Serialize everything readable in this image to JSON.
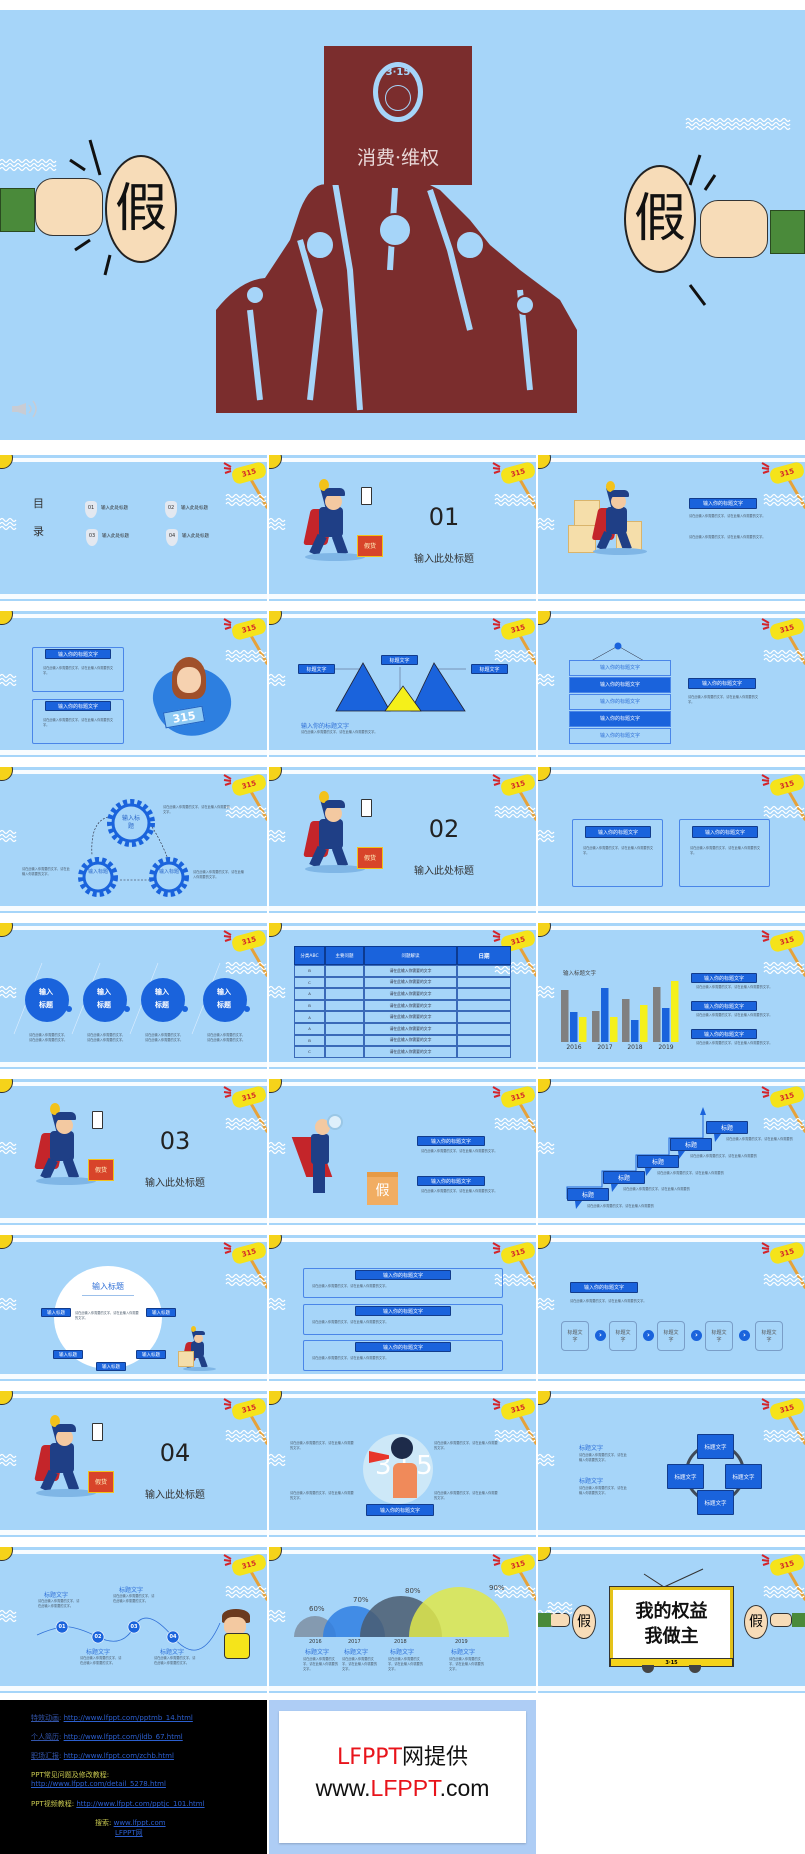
{
  "colors": {
    "slide_bg": "#a6d5f9",
    "accent_blue": "#1a63dc",
    "banner_red": "#7b2d2d",
    "yellow": "#f5e11a",
    "footer_black": "#000000",
    "brand_red": "#e8141b"
  },
  "main": {
    "logo": "3·15",
    "banner_text": "消费·维权",
    "fist_char": "假",
    "icons": [
      "fist-icon",
      "waves-icon",
      "speaker-icon"
    ]
  },
  "common": {
    "body": "请在此输入你需要的文字，请在此输入你需要的文字。",
    "hammer_label": "315",
    "title_placeholder": "输入此处标题",
    "heading": "输入你的标题文字",
    "short_title": "标题文字",
    "input_title": "输入标题",
    "fake_box": "假货",
    "fake": "假",
    "title": "标题"
  },
  "slides": [
    {
      "type": "toc",
      "chars": [
        "目",
        "录"
      ],
      "items": [
        {
          "num": "01",
          "label": "输入此处标题"
        },
        {
          "num": "02",
          "label": "输入此处标题"
        },
        {
          "num": "03",
          "label": "输入此处标题"
        },
        {
          "num": "04",
          "label": "输入此处标题"
        }
      ]
    },
    {
      "type": "section",
      "num": "01"
    },
    {
      "type": "police_text"
    },
    {
      "type": "girl_boxes",
      "sign": "315"
    },
    {
      "type": "triangles"
    },
    {
      "type": "stack"
    },
    {
      "type": "gears"
    },
    {
      "type": "section",
      "num": "02"
    },
    {
      "type": "two_boxes"
    },
    {
      "type": "circles4",
      "circle_text": [
        "输入",
        "标题"
      ]
    },
    {
      "type": "table",
      "headers": [
        "分类ABC",
        "主要问题",
        "问题解读",
        "日期"
      ],
      "rows": [
        {
          "cat": "B",
          "text": "请在此输入你需要的文字"
        },
        {
          "cat": "C",
          "text": "请在此输入你需要的文字"
        },
        {
          "cat": "A",
          "text": "请在此输入你需要的文字"
        },
        {
          "cat": "B",
          "text": "请在此输入你需要的文字"
        },
        {
          "cat": "A",
          "text": "请在此输入你需要的文字"
        },
        {
          "cat": "A",
          "text": "请在此输入你需要的文字"
        },
        {
          "cat": "B",
          "text": "请在此输入你需要的文字"
        },
        {
          "cat": "C",
          "text": "请在此输入你需要的文字"
        }
      ]
    },
    {
      "type": "bars"
    },
    {
      "type": "section",
      "num": "03"
    },
    {
      "type": "magnifier"
    },
    {
      "type": "stairs"
    },
    {
      "type": "circle_labels"
    },
    {
      "type": "three_boxes"
    },
    {
      "type": "process",
      "steps": [
        "标题文字",
        "标题文字",
        "标题文字",
        "标题文字",
        "标题文字"
      ]
    },
    {
      "type": "section",
      "num": "04"
    },
    {
      "type": "megaphone",
      "circle_text": "315"
    },
    {
      "type": "cycle"
    },
    {
      "type": "timeline",
      "nums": [
        "01",
        "02",
        "03",
        "04"
      ]
    },
    {
      "type": "arcs"
    },
    {
      "type": "final",
      "line1": "我的权益",
      "line2": "我做主",
      "tag": "3·15"
    }
  ],
  "chart_data": [
    {
      "type": "bar",
      "title": "输入标题文字",
      "categories": [
        "2016",
        "2017",
        "2018",
        "2019"
      ],
      "series": [
        {
          "color": "#808080",
          "values": [
            5.2,
            3.1,
            4.3,
            5.5
          ]
        },
        {
          "color": "#1a63dc",
          "values": [
            3.0,
            5.4,
            2.2,
            3.4
          ]
        },
        {
          "color": "#f5f01a",
          "values": [
            2.5,
            2.5,
            3.7,
            6.1
          ]
        }
      ],
      "xlabel": "",
      "ylabel": "",
      "grid": false
    },
    {
      "type": "pie",
      "categories": [
        "2016",
        "2017",
        "2018",
        "2019"
      ],
      "values": [
        60,
        70,
        80,
        90
      ],
      "labels": [
        "60%",
        "70%",
        "80%",
        "90%"
      ],
      "colors": [
        "#7e8fa3",
        "#2f7fe3",
        "#4a5c70",
        "#dfe84a"
      ]
    }
  ],
  "footer": {
    "links": [
      {
        "label": "特效动画",
        "url": "http://www.lfppt.com/pptmb_14.html"
      },
      {
        "label": "个人简历",
        "url": "http://www.lfppt.com/jldb_67.html"
      },
      {
        "label": "职场汇报",
        "url": "http://www.lfppt.com/zchb.html"
      },
      {
        "label": "PPT常见问题及修改教程",
        "url": "http://www.lfppt.com/detail_5278.html"
      },
      {
        "label": "PPT视频教程",
        "url": "http://www.lfppt.com/pptjc_101.html"
      }
    ],
    "search_label": "搜索",
    "search_url": "www.lfppt.com",
    "site_name": "LFPPT网",
    "card": {
      "line1_red": "LFPPT",
      "line1_black": "网提供",
      "line2_a": "www.",
      "line2_red": "LFPPT",
      "line2_b": ".com"
    }
  }
}
